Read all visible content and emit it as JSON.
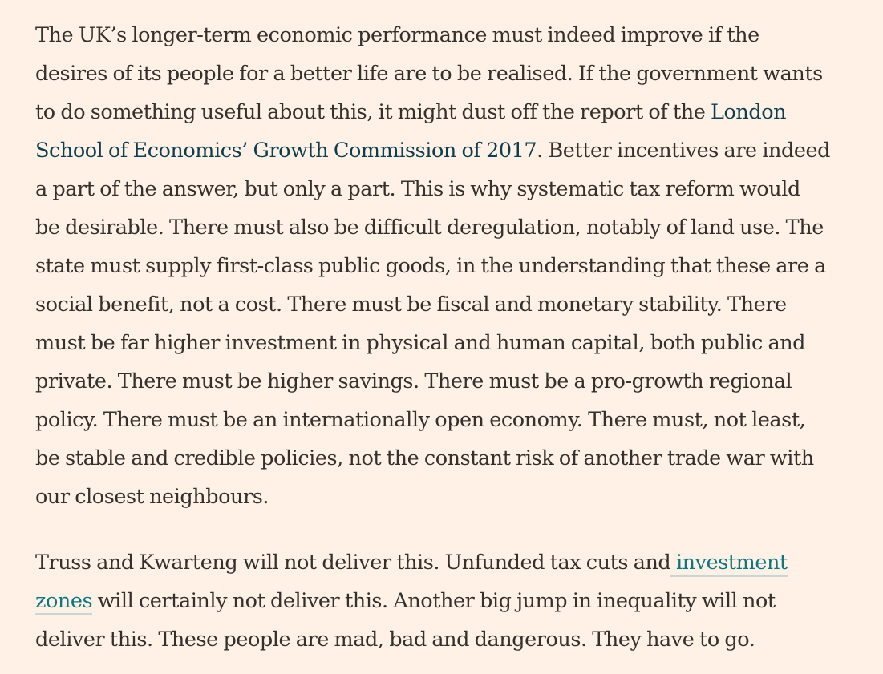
{
  "paragraph1": {
    "line1": "The UK’s longer-term economic performance must indeed improve if the",
    "line2": "desires of its people for a better life are to be realised. If the government wants",
    "line3_before_link": "to do something useful about this, it might dust off the report of the ",
    "link_part1": "London",
    "link_part2": "School of Economics’ Growth Commission of 2017",
    "line4_after_link": ". Better incentives are indeed",
    "line5": "a part of the answer, but only a part. This is why systematic tax reform would",
    "line6": "be desirable. There must also be difficult deregulation, notably of land use. The",
    "line7": "state must supply first-class public goods, in the understanding that these are a",
    "line8": "social benefit, not a cost. There must be fiscal and monetary stability. There",
    "line9": "must be far higher investment in physical and human capital, both public and",
    "line10": "private. There must be higher savings. There must be a pro-growth regional",
    "line11": "policy. There must be an internationally open economy. There must, not least,",
    "line12": "be stable and credible policies, not the constant risk of another trade war with",
    "line13": "our closest neighbours."
  },
  "paragraph2": {
    "line1_before_link": "Truss and Kwarteng will not deliver this. Unfunded tax cuts and",
    "link_part1": " investment",
    "link_part2": "zones",
    "line2_after_link": " will certainly not deliver this. Another big jump in inequality will not",
    "line3": "deliver this. These people are mad, bad and dangerous. They have to go."
  }
}
